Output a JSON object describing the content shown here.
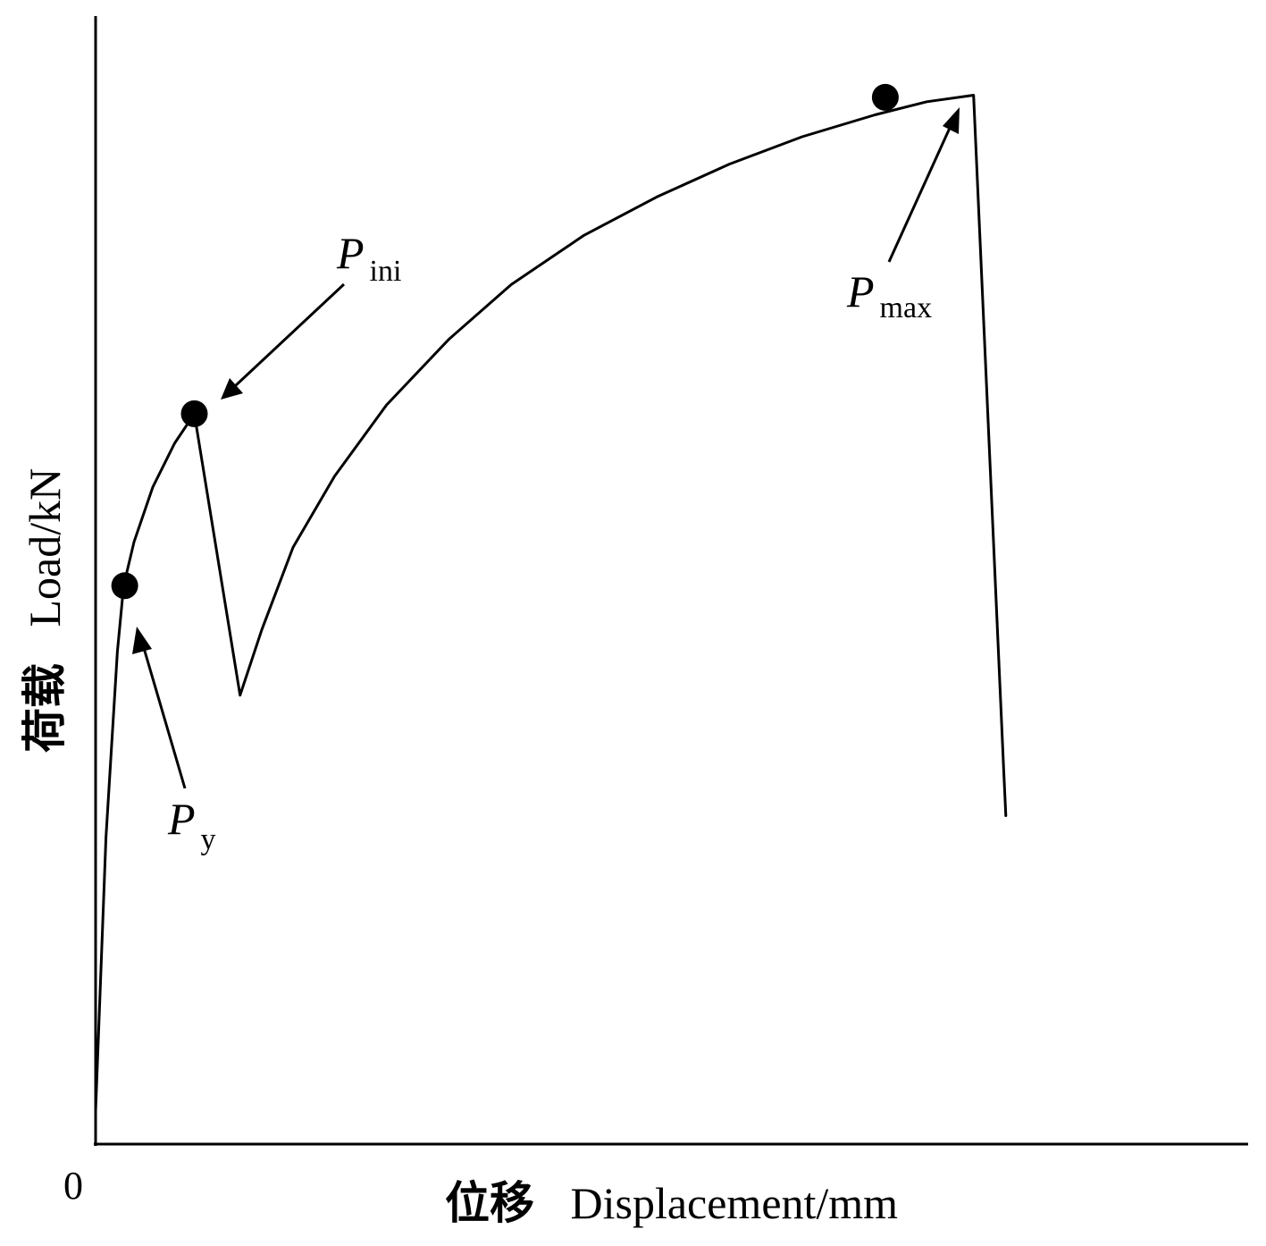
{
  "chart_data": {
    "type": "line",
    "xlabel_cjk": "位移",
    "xlabel": "Displacement/mm",
    "ylabel_cjk": "荷载",
    "ylabel": "Load/kN",
    "origin_label": "0",
    "xlim": [
      0,
      100
    ],
    "ylim": [
      0,
      100
    ],
    "ticks_shown": false,
    "grid": false,
    "series": [
      {
        "values": [
          [
            0.0,
            3.0
          ],
          [
            1.0,
            28.0
          ],
          [
            2.1,
            45.0
          ],
          [
            2.7,
            51.0
          ],
          [
            3.7,
            55.0
          ],
          [
            5.5,
            60.0
          ],
          [
            7.6,
            64.0
          ],
          [
            9.5,
            66.7
          ],
          [
            13.9,
            41.0
          ],
          [
            16.0,
            47.0
          ],
          [
            19.0,
            54.5
          ],
          [
            23.0,
            61.0
          ],
          [
            28.0,
            67.5
          ],
          [
            34.0,
            73.5
          ],
          [
            40.0,
            78.5
          ],
          [
            47.0,
            83.0
          ],
          [
            54.0,
            86.5
          ],
          [
            61.0,
            89.5
          ],
          [
            68.0,
            92.0
          ],
          [
            75.0,
            94.0
          ],
          [
            80.0,
            95.2
          ],
          [
            84.5,
            95.8
          ],
          [
            87.4,
            34.0
          ],
          [
            87.6,
            30.0
          ]
        ]
      }
    ],
    "key_points": [
      {
        "id": "py",
        "symbol": "P",
        "subscript": "y",
        "x": 2.8,
        "y": 51.0
      },
      {
        "id": "pini",
        "symbol": "P",
        "subscript": "ini",
        "x": 9.5,
        "y": 66.7
      },
      {
        "id": "pmax",
        "symbol": "P",
        "subscript": "max",
        "x": 76.0,
        "y": 95.6
      }
    ]
  }
}
